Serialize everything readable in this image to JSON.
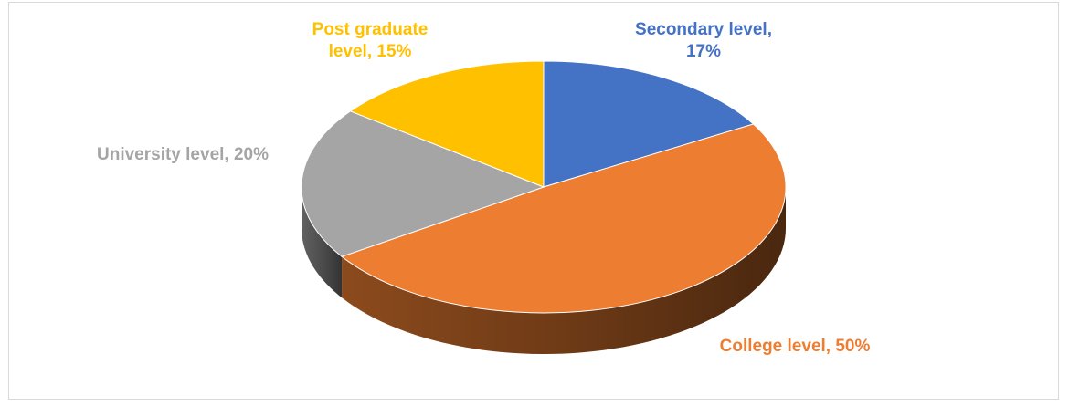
{
  "chart_data": {
    "type": "pie",
    "values": [
      17,
      50,
      20,
      15
    ],
    "value_labels": [
      "Secondary level, 17%",
      "College level, 50%",
      "University level, 20%",
      "Post graduate level, 15%"
    ],
    "colors": [
      "#4472c4",
      "#ed7d31",
      "#a5a5a5",
      "#ffc000"
    ]
  }
}
